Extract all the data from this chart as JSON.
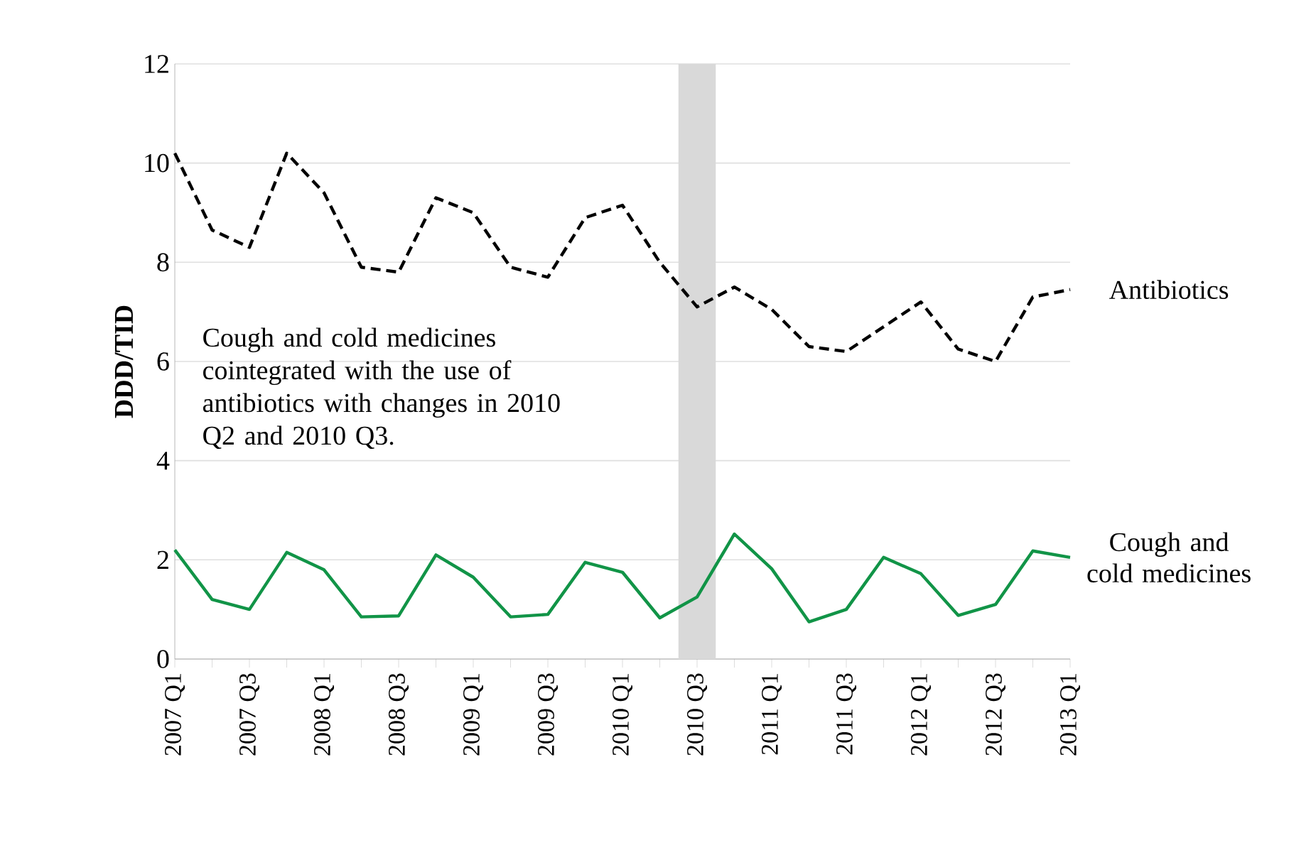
{
  "chart_data": {
    "type": "line",
    "ylabel": "DDD/TID",
    "categories": [
      "2007 Q1",
      null,
      "2007 Q3",
      null,
      "2008 Q1",
      null,
      "2008 Q3",
      null,
      "2009 Q1",
      null,
      "2009 Q3",
      null,
      "2010 Q1",
      null,
      "2010 Q3",
      null,
      "2011 Q1",
      null,
      "2011 Q3",
      null,
      "2012 Q1",
      null,
      "2012 Q3",
      null,
      "2013 Q1"
    ],
    "series": [
      {
        "name": "Antibiotics",
        "color": "#000000",
        "line_style": "dashed",
        "values": [
          10.2,
          8.65,
          8.3,
          10.2,
          9.4,
          7.9,
          7.8,
          9.3,
          9.0,
          7.9,
          7.7,
          8.9,
          9.15,
          8.0,
          7.1,
          7.5,
          7.05,
          6.3,
          6.2,
          6.7,
          7.2,
          6.25,
          6.0,
          7.3,
          7.45
        ]
      },
      {
        "name": "Cough and cold medicines",
        "color": "#119447",
        "line_style": "solid",
        "values": [
          2.2,
          1.2,
          1.0,
          2.15,
          1.8,
          0.85,
          0.87,
          2.1,
          1.65,
          0.85,
          0.9,
          1.95,
          1.75,
          0.83,
          1.25,
          2.52,
          1.82,
          0.75,
          1.0,
          2.05,
          1.72,
          0.88,
          1.1,
          2.18,
          2.05
        ]
      }
    ],
    "ylim": [
      0,
      12
    ],
    "yticks": [
      0,
      2,
      4,
      6,
      8,
      10,
      12
    ],
    "grid": "y",
    "legend": false,
    "marker": "none",
    "bands": [
      {
        "axis": "x",
        "from": "2010 Q3",
        "to": "2010 Q3",
        "color": "#d9d9d9"
      }
    ],
    "annotations": [
      "Cough and cold medicines cointegrated with the use of antibiotics with changes in 2010 Q2 and 2010 Q3."
    ]
  }
}
